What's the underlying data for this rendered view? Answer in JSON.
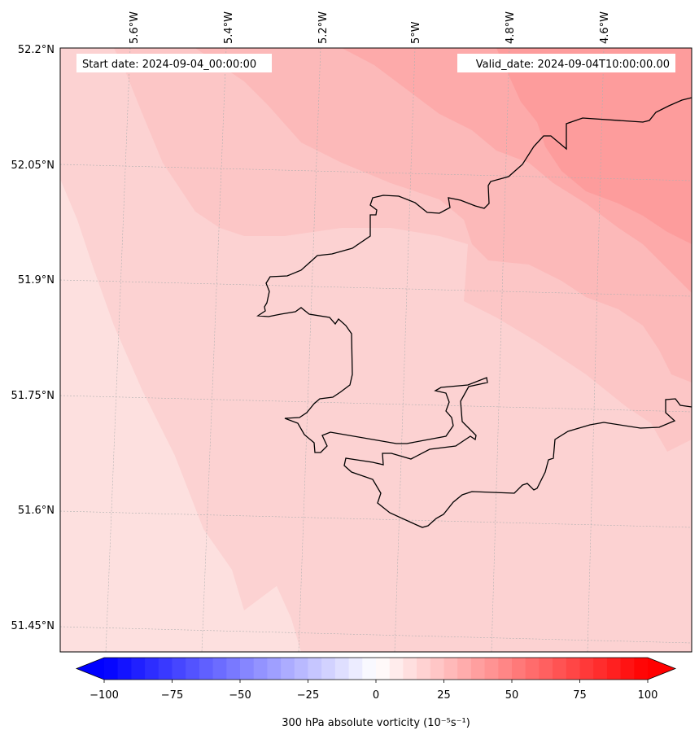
{
  "map": {
    "start_label": "Start date: 2024-09-04_00:00:00",
    "valid_label": "Valid_date: 2024-09-04T10:00:00.00",
    "lon_labels": [
      "5.6°W",
      "5.4°W",
      "5.2°W",
      "5°W",
      "4.8°W",
      "4.6°W"
    ],
    "lat_labels": [
      "52.2°N",
      "52.05°N",
      "51.9°N",
      "51.75°N",
      "51.6°N",
      "51.45°N"
    ],
    "field_colors": [
      "#fde0df",
      "#fcd2d2",
      "#fcc6c6",
      "#fcb9b9",
      "#fdaaaa",
      "#fd9c9c"
    ],
    "coastline_color": "#000000"
  },
  "colorbar": {
    "label": "300 hPa absolute vorticity (10⁻⁵s⁻¹)",
    "tick_labels": [
      "−100",
      "−75",
      "−50",
      "−25",
      "0",
      "25",
      "50",
      "75",
      "100"
    ],
    "min": -100,
    "max": 100,
    "step": 5,
    "low_color": "#0000ff",
    "mid_color": "#ffffff",
    "high_color": "#ff0000"
  }
}
